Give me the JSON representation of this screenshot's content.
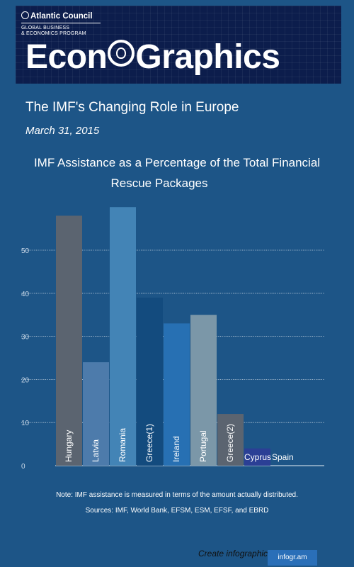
{
  "banner": {
    "org": "Atlantic Council",
    "program_line1": "GLOBAL BUSINESS",
    "program_line2": "& ECONOMICS PROGRAM",
    "brand_left": "Econ",
    "brand_right": "Graphics"
  },
  "page": {
    "title": "The IMF's Changing Role in Europe",
    "date": "March 31, 2015"
  },
  "chart_data": {
    "type": "bar",
    "title": "IMF  Assistance as a Percentage of the Total Financial Rescue Packages",
    "title_line1": "IMF  Assistance as a Percentage of the Total Financial",
    "title_line2": "Rescue Packages",
    "categories": [
      "Hungary",
      "Latvia",
      "Romania",
      "Greece(1)",
      "Ireland",
      "Portugal",
      "Greece(2)",
      "Cyprus",
      "Spain"
    ],
    "values": [
      58,
      24,
      60,
      39,
      33,
      35,
      12,
      4,
      0
    ],
    "colors": [
      "#5b6470",
      "#4d7bab",
      "#4384b6",
      "#134b7e",
      "#2770b3",
      "#7b97a8",
      "#5b6470",
      "#2b3f95",
      "#5b7aa5"
    ],
    "yticks": [
      0,
      10,
      20,
      30,
      40,
      50
    ],
    "ylim": [
      0,
      65
    ],
    "grid": true,
    "legend": "none"
  },
  "footer": {
    "note": "Note: IMF assistance is measured in terms of the amount actually distributed.",
    "sources": "Sources: IMF, World Bank, EFSM, ESM, EFSF, and EBRD",
    "create_label": "Create infographics",
    "brand": "infogr.am"
  }
}
